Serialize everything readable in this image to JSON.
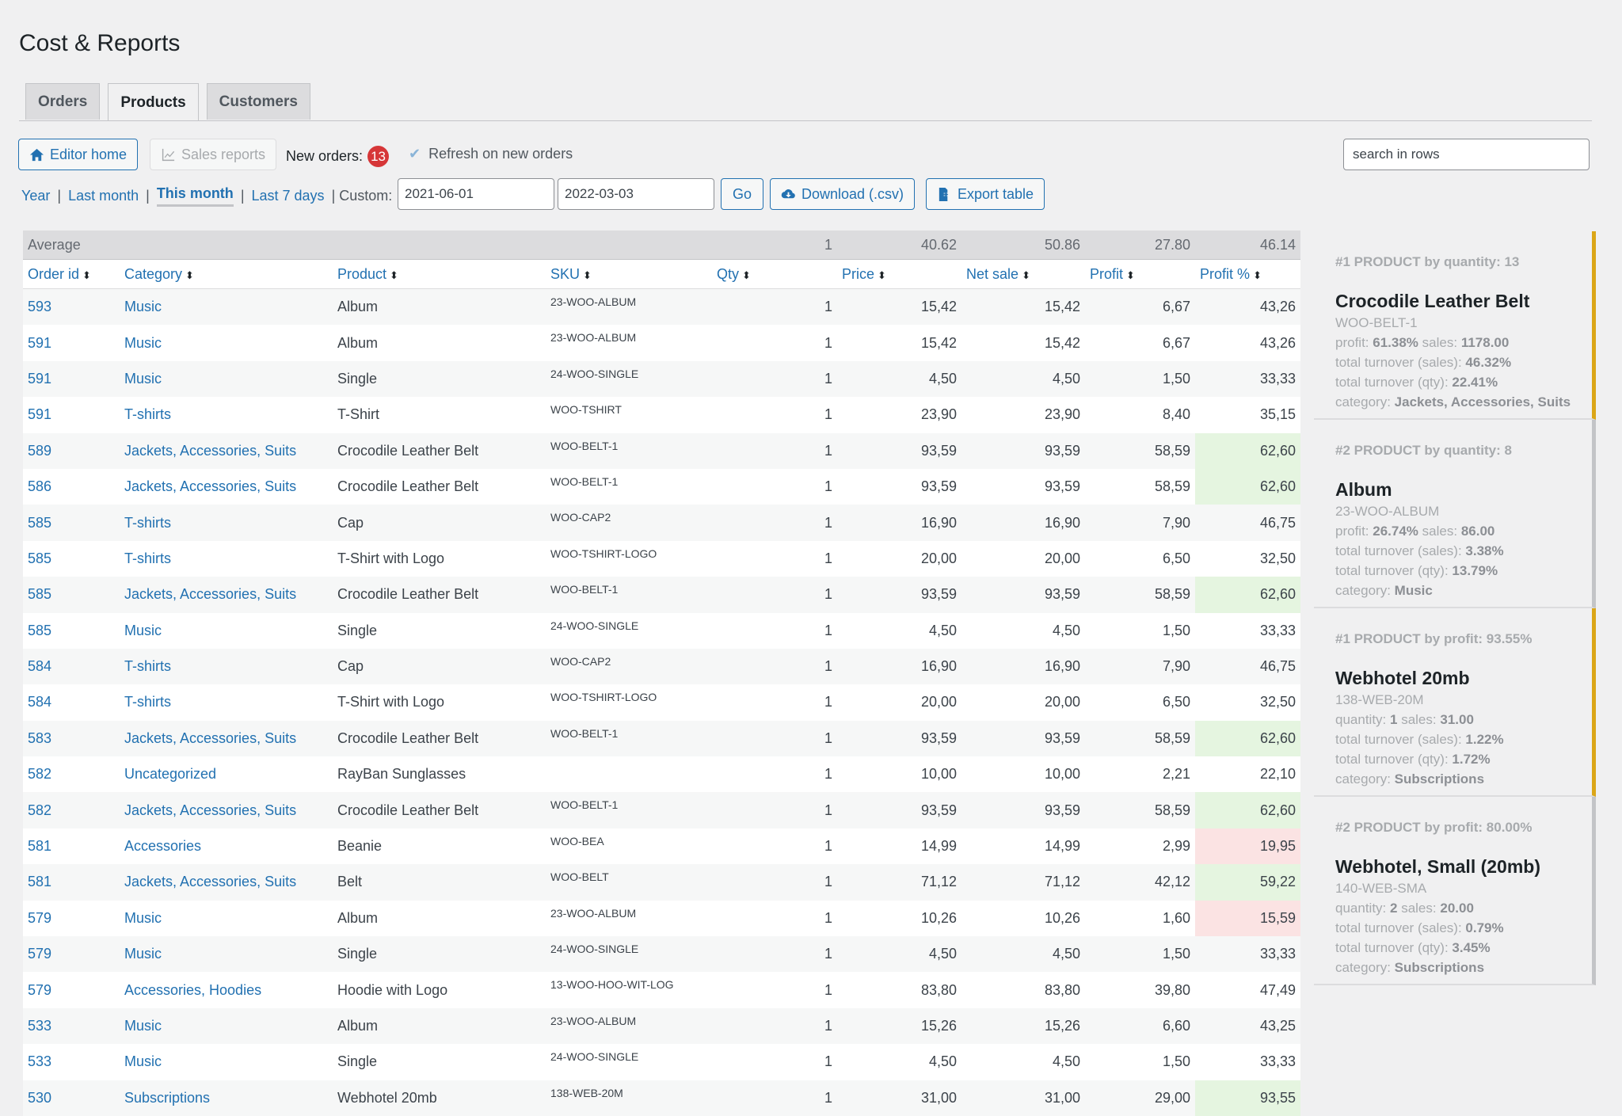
{
  "page_title": "Cost & Reports",
  "tabs": [
    "Orders",
    "Products",
    "Customers"
  ],
  "toolbar": {
    "editor_home": "Editor home",
    "sales_reports": "Sales reports",
    "new_orders_label": "New orders:",
    "new_orders_count": "13",
    "refresh_label": "Refresh on new orders",
    "search_placeholder": "search in rows"
  },
  "ranges": {
    "year": "Year",
    "last_month": "Last month",
    "this_month": "This month",
    "last_7": "Last 7 days",
    "custom": "| Custom:",
    "date_from": "2021-06-01",
    "date_to": "2022-03-03",
    "go": "Go",
    "download": "Download (.csv)",
    "export": "Export table"
  },
  "table": {
    "average_label": "Average",
    "averages": {
      "qty": "1",
      "price": "40.62",
      "net": "50.86",
      "profit": "27.80",
      "pct": "46.14"
    },
    "columns": [
      "Order id",
      "Category",
      "Product",
      "SKU",
      "Qty",
      "Price",
      "Net sale",
      "Profit",
      "Profit %"
    ],
    "rows": [
      {
        "id": "593",
        "cat": "Music",
        "product": "Album",
        "sku": "23-WOO-ALBUM",
        "qty": "1",
        "price": "15,42",
        "net": "15,42",
        "profit": "6,67",
        "pct": "43,26",
        "status": ""
      },
      {
        "id": "591",
        "cat": "Music",
        "product": "Album",
        "sku": "23-WOO-ALBUM",
        "qty": "1",
        "price": "15,42",
        "net": "15,42",
        "profit": "6,67",
        "pct": "43,26",
        "status": ""
      },
      {
        "id": "591",
        "cat": "Music",
        "product": "Single",
        "sku": "24-WOO-SINGLE",
        "qty": "1",
        "price": "4,50",
        "net": "4,50",
        "profit": "1,50",
        "pct": "33,33",
        "status": ""
      },
      {
        "id": "591",
        "cat": "T-shirts",
        "product": "T-Shirt",
        "sku": "WOO-TSHIRT",
        "qty": "1",
        "price": "23,90",
        "net": "23,90",
        "profit": "8,40",
        "pct": "35,15",
        "status": ""
      },
      {
        "id": "589",
        "cat": "Jackets, Accessories, Suits",
        "product": "Crocodile Leather Belt",
        "sku": "WOO-BELT-1",
        "qty": "1",
        "price": "93,59",
        "net": "93,59",
        "profit": "58,59",
        "pct": "62,60",
        "status": "good"
      },
      {
        "id": "586",
        "cat": "Jackets, Accessories, Suits",
        "product": "Crocodile Leather Belt",
        "sku": "WOO-BELT-1",
        "qty": "1",
        "price": "93,59",
        "net": "93,59",
        "profit": "58,59",
        "pct": "62,60",
        "status": "good"
      },
      {
        "id": "585",
        "cat": "T-shirts",
        "product": "Cap",
        "sku": "WOO-CAP2",
        "qty": "1",
        "price": "16,90",
        "net": "16,90",
        "profit": "7,90",
        "pct": "46,75",
        "status": ""
      },
      {
        "id": "585",
        "cat": "T-shirts",
        "product": "T-Shirt with Logo",
        "sku": "WOO-TSHIRT-LOGO",
        "qty": "1",
        "price": "20,00",
        "net": "20,00",
        "profit": "6,50",
        "pct": "32,50",
        "status": ""
      },
      {
        "id": "585",
        "cat": "Jackets, Accessories, Suits",
        "product": "Crocodile Leather Belt",
        "sku": "WOO-BELT-1",
        "qty": "1",
        "price": "93,59",
        "net": "93,59",
        "profit": "58,59",
        "pct": "62,60",
        "status": "good"
      },
      {
        "id": "585",
        "cat": "Music",
        "product": "Single",
        "sku": "24-WOO-SINGLE",
        "qty": "1",
        "price": "4,50",
        "net": "4,50",
        "profit": "1,50",
        "pct": "33,33",
        "status": ""
      },
      {
        "id": "584",
        "cat": "T-shirts",
        "product": "Cap",
        "sku": "WOO-CAP2",
        "qty": "1",
        "price": "16,90",
        "net": "16,90",
        "profit": "7,90",
        "pct": "46,75",
        "status": ""
      },
      {
        "id": "584",
        "cat": "T-shirts",
        "product": "T-Shirt with Logo",
        "sku": "WOO-TSHIRT-LOGO",
        "qty": "1",
        "price": "20,00",
        "net": "20,00",
        "profit": "6,50",
        "pct": "32,50",
        "status": ""
      },
      {
        "id": "583",
        "cat": "Jackets, Accessories, Suits",
        "product": "Crocodile Leather Belt",
        "sku": "WOO-BELT-1",
        "qty": "1",
        "price": "93,59",
        "net": "93,59",
        "profit": "58,59",
        "pct": "62,60",
        "status": "good"
      },
      {
        "id": "582",
        "cat": "Uncategorized",
        "product": "RayBan Sunglasses",
        "sku": "",
        "qty": "1",
        "price": "10,00",
        "net": "10,00",
        "profit": "2,21",
        "pct": "22,10",
        "status": ""
      },
      {
        "id": "582",
        "cat": "Jackets, Accessories, Suits",
        "product": "Crocodile Leather Belt",
        "sku": "WOO-BELT-1",
        "qty": "1",
        "price": "93,59",
        "net": "93,59",
        "profit": "58,59",
        "pct": "62,60",
        "status": "good"
      },
      {
        "id": "581",
        "cat": "Accessories",
        "product": "Beanie",
        "sku": "WOO-BEA",
        "qty": "1",
        "price": "14,99",
        "net": "14,99",
        "profit": "2,99",
        "pct": "19,95",
        "status": "bad"
      },
      {
        "id": "581",
        "cat": "Jackets, Accessories, Suits",
        "product": "Belt",
        "sku": "WOO-BELT",
        "qty": "1",
        "price": "71,12",
        "net": "71,12",
        "profit": "42,12",
        "pct": "59,22",
        "status": "good"
      },
      {
        "id": "579",
        "cat": "Music",
        "product": "Album",
        "sku": "23-WOO-ALBUM",
        "qty": "1",
        "price": "10,26",
        "net": "10,26",
        "profit": "1,60",
        "pct": "15,59",
        "status": "bad"
      },
      {
        "id": "579",
        "cat": "Music",
        "product": "Single",
        "sku": "24-WOO-SINGLE",
        "qty": "1",
        "price": "4,50",
        "net": "4,50",
        "profit": "1,50",
        "pct": "33,33",
        "status": ""
      },
      {
        "id": "579",
        "cat": "Accessories, Hoodies",
        "product": "Hoodie with Logo",
        "sku": "13-WOO-HOO-WIT-LOG",
        "qty": "1",
        "price": "83,80",
        "net": "83,80",
        "profit": "39,80",
        "pct": "47,49",
        "status": ""
      },
      {
        "id": "533",
        "cat": "Music",
        "product": "Album",
        "sku": "23-WOO-ALBUM",
        "qty": "1",
        "price": "15,26",
        "net": "15,26",
        "profit": "6,60",
        "pct": "43,25",
        "status": ""
      },
      {
        "id": "533",
        "cat": "Music",
        "product": "Single",
        "sku": "24-WOO-SINGLE",
        "qty": "1",
        "price": "4,50",
        "net": "4,50",
        "profit": "1,50",
        "pct": "33,33",
        "status": ""
      },
      {
        "id": "530",
        "cat": "Subscriptions",
        "product": "Webhotel 20mb",
        "sku": "138-WEB-20M",
        "qty": "1",
        "price": "31,00",
        "net": "31,00",
        "profit": "29,00",
        "pct": "93,55",
        "status": "good"
      }
    ]
  },
  "sidebar": [
    {
      "rank": "#1 PRODUCT by quantity: 13",
      "name": "Crocodile Leather Belt",
      "sku": "WOO-BELT-1",
      "l1k": "profit:",
      "l1v": "61.38%",
      "l1k2": "sales:",
      "l1v2": "1178.00",
      "l2k": "total turnover (sales):",
      "l2v": "46.32%",
      "l3k": "total turnover (qty):",
      "l3v": "22.41%",
      "l4k": "category:",
      "l4v": "Jackets, Accessories, Suits",
      "accent": "gold"
    },
    {
      "rank": "#2 PRODUCT by quantity: 8",
      "name": "Album",
      "sku": "23-WOO-ALBUM",
      "l1k": "profit:",
      "l1v": "26.74%",
      "l1k2": "sales:",
      "l1v2": "86.00",
      "l2k": "total turnover (sales):",
      "l2v": "3.38%",
      "l3k": "total turnover (qty):",
      "l3v": "13.79%",
      "l4k": "category:",
      "l4v": "Music",
      "accent": "gray"
    },
    {
      "rank": "#1 PRODUCT by profit: 93.55%",
      "name": "Webhotel 20mb",
      "sku": "138-WEB-20M",
      "l1k": "quantity:",
      "l1v": "1",
      "l1k2": "sales:",
      "l1v2": "31.00",
      "l2k": "total turnover (sales):",
      "l2v": "1.22%",
      "l3k": "total turnover (qty):",
      "l3v": "1.72%",
      "l4k": "category:",
      "l4v": "Subscriptions",
      "accent": "gold"
    },
    {
      "rank": "#2 PRODUCT by profit: 80.00%",
      "name": "Webhotel, Small (20mb)",
      "sku": "140-WEB-SMA",
      "l1k": "quantity:",
      "l1v": "2",
      "l1k2": "sales:",
      "l1v2": "20.00",
      "l2k": "total turnover (sales):",
      "l2v": "0.79%",
      "l3k": "total turnover (qty):",
      "l3v": "3.45%",
      "l4k": "category:",
      "l4v": "Subscriptions",
      "accent": "gray"
    }
  ]
}
